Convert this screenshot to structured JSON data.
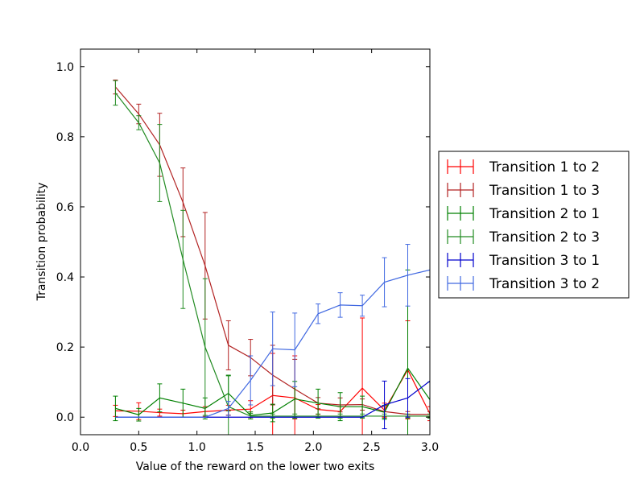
{
  "chart_data": {
    "type": "line",
    "title": "",
    "xlabel": "Value of the reward on the lower two exits",
    "ylabel": "Transition probability",
    "xlim": [
      0.0,
      3.0
    ],
    "ylim": [
      -0.05,
      1.05
    ],
    "xticks": [
      0.0,
      0.5,
      1.0,
      1.5,
      2.0,
      2.5,
      3.0
    ],
    "xtick_labels": [
      "0.0",
      "0.5",
      "1.0",
      "1.5",
      "2.0",
      "2.5",
      "3.0"
    ],
    "yticks": [
      0.0,
      0.2,
      0.4,
      0.6,
      0.8,
      1.0
    ],
    "ytick_labels": [
      "0.0",
      "0.2",
      "0.4",
      "0.6",
      "0.8",
      "1.0"
    ],
    "grid": false,
    "legend_position": "right-outside",
    "x": [
      0.3,
      0.5,
      0.68,
      0.88,
      1.07,
      1.27,
      1.46,
      1.65,
      1.84,
      2.04,
      2.23,
      2.42,
      2.61,
      2.81,
      3.0
    ],
    "series": [
      {
        "name": "Transition 1 to 2",
        "color": "#ff0000",
        "values": [
          0.018,
          0.017,
          0.013,
          0.01,
          0.016,
          0.02,
          0.023,
          0.062,
          0.055,
          0.022,
          0.016,
          0.083,
          0.02,
          0.135,
          0.01
        ],
        "errors": [
          0.016,
          0.024,
          0.01,
          0.01,
          0.014,
          0.014,
          0.024,
          0.12,
          0.12,
          0.014,
          0.014,
          0.2,
          0.02,
          0.14,
          0.02
        ]
      },
      {
        "name": "Transition 1 to 3",
        "color": "#b22222",
        "values": [
          0.942,
          0.865,
          0.777,
          0.613,
          0.432,
          0.205,
          0.17,
          0.12,
          0.08,
          0.04,
          0.035,
          0.036,
          0.016,
          0.008,
          0.008
        ],
        "errors": [
          0.02,
          0.028,
          0.09,
          0.098,
          0.152,
          0.07,
          0.052,
          0.085,
          0.085,
          0.016,
          0.02,
          0.016,
          0.014,
          0.008,
          0.008
        ]
      },
      {
        "name": "Transition 2 to 1",
        "color": "#008000",
        "values": [
          0.025,
          0.007,
          0.055,
          0.04,
          0.025,
          0.068,
          0.005,
          0.012,
          0.052,
          0.04,
          0.03,
          0.03,
          0.014,
          0.14,
          0.05
        ],
        "errors": [
          0.035,
          0.018,
          0.04,
          0.04,
          0.03,
          0.05,
          0.01,
          0.025,
          0.05,
          0.04,
          0.04,
          0.03,
          0.02,
          0.28,
          0.05
        ]
      },
      {
        "name": "Transition 2 to 3",
        "color": "#228b22",
        "values": [
          0.925,
          0.84,
          0.725,
          0.45,
          0.2,
          0.03,
          0.003,
          0.003,
          0.003,
          0.003,
          0.003,
          0.003,
          0.003,
          0.003,
          0.003
        ],
        "errors": [
          0.035,
          0.02,
          0.11,
          0.14,
          0.195,
          0.09,
          0.008,
          0.006,
          0.006,
          0.006,
          0.006,
          0.006,
          0.006,
          0.006,
          0.006
        ]
      },
      {
        "name": "Transition 3 to 1",
        "color": "#0000cd",
        "values": [
          0.0,
          0.0,
          0.0,
          0.0,
          0.0,
          0.0,
          0.0,
          0.0,
          0.0,
          0.0,
          0.0,
          0.0,
          0.035,
          0.055,
          0.103
        ],
        "errors": [
          0.0,
          0.0,
          0.0,
          0.0,
          0.0,
          0.0,
          0.0,
          0.0,
          0.0,
          0.0,
          0.0,
          0.0,
          0.068,
          0.055,
          0.0
        ]
      },
      {
        "name": "Transition 3 to 2",
        "color": "#4169e1",
        "values": [
          0.0,
          0.0,
          0.0,
          0.0,
          0.0,
          0.025,
          0.105,
          0.195,
          0.192,
          0.295,
          0.32,
          0.318,
          0.385,
          0.405,
          0.42
        ],
        "errors": [
          0.0,
          0.0,
          0.0,
          0.0,
          0.0,
          0.02,
          0.07,
          0.105,
          0.105,
          0.028,
          0.035,
          0.03,
          0.07,
          0.088,
          0.0
        ]
      }
    ]
  }
}
